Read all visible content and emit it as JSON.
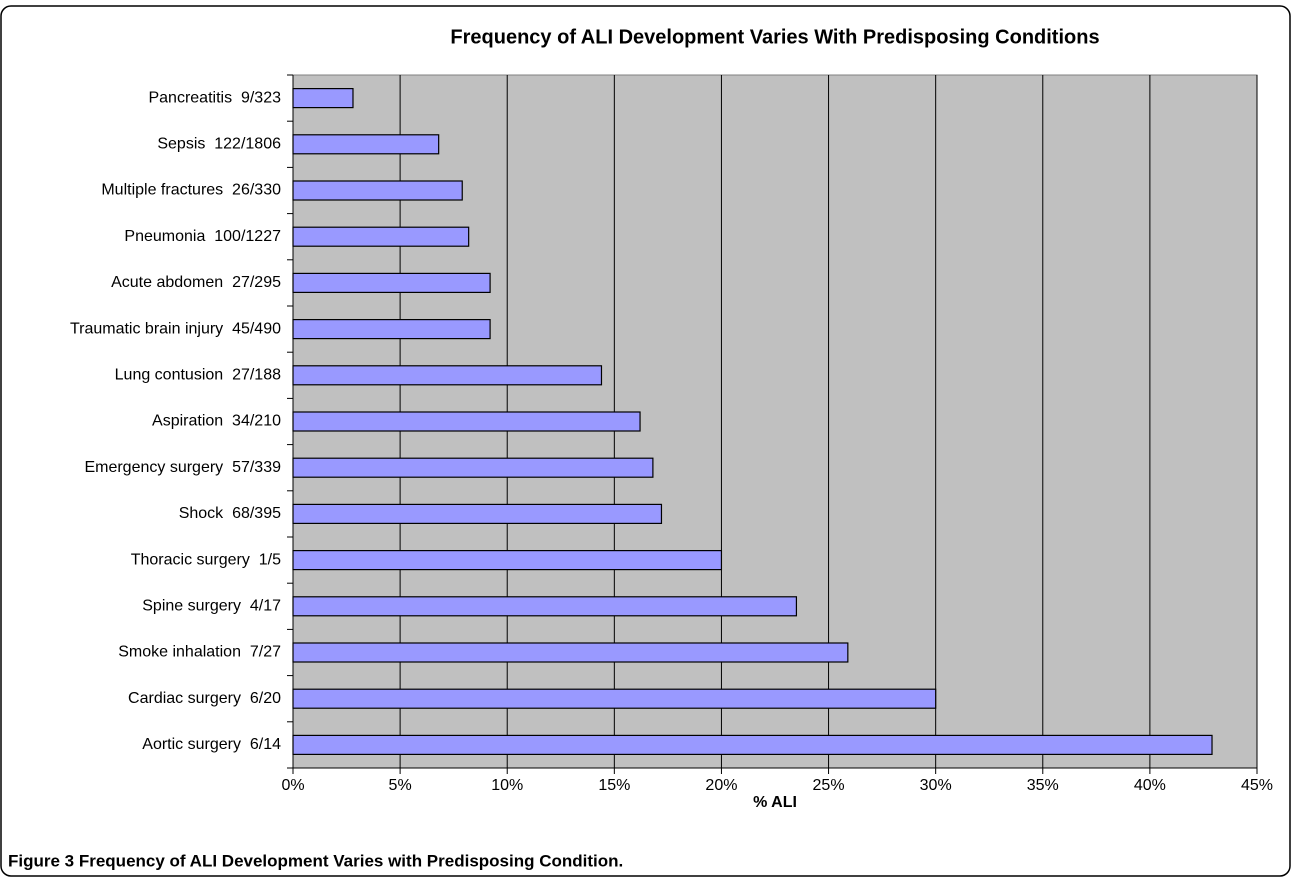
{
  "chart_data": {
    "type": "bar",
    "orientation": "horizontal",
    "title": "Frequency of ALI Development Varies With Predisposing Conditions",
    "x_label": "% ALI",
    "caption": "Figure 3 Frequency of ALI Development Varies with Predisposing Condition.",
    "categories": [
      "Pancreatitis  9/323",
      "Sepsis  122/1806",
      "Multiple fractures  26/330",
      "Pneumonia  100/1227",
      "Acute abdomen  27/295",
      "Traumatic brain injury  45/490",
      "Lung contusion  27/188",
      "Aspiration  34/210",
      "Emergency surgery  57/339",
      "Shock  68/395",
      "Thoracic surgery  1/5",
      "Spine surgery  4/17",
      "Smoke inhalation  7/27",
      "Cardiac surgery  6/20",
      "Aortic surgery  6/14"
    ],
    "values": [
      2.8,
      6.8,
      7.9,
      8.2,
      9.2,
      9.2,
      14.4,
      16.2,
      16.8,
      17.2,
      20,
      23.5,
      25.9,
      30,
      42.9
    ],
    "color": "#9999ff",
    "xlim": [
      0,
      45
    ],
    "xticks": [
      {
        "value": 0,
        "label": "0%"
      },
      {
        "value": 5,
        "label": "5%"
      },
      {
        "value": 10,
        "label": "10%"
      },
      {
        "value": 15,
        "label": "15%"
      },
      {
        "value": 20,
        "label": "20%"
      },
      {
        "value": 25,
        "label": "25%"
      },
      {
        "value": 30,
        "label": "30%"
      },
      {
        "value": 35,
        "label": "35%"
      },
      {
        "value": 40,
        "label": "40%"
      },
      {
        "value": 45,
        "label": "45%"
      }
    ],
    "grid": true
  }
}
